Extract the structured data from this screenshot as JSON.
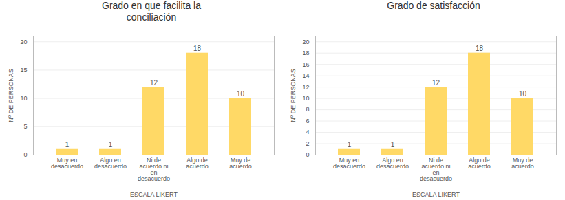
{
  "chart_data": [
    {
      "type": "bar",
      "title": "Grado en que facilita la\nconciliación",
      "categories": [
        "Muy en\ndesacuerdo",
        "Algo en\ndesacuerdo",
        "Ni de\nacuerdo ni\nen\ndesacuerdo",
        "Algo de\nacuerdo",
        "Muy de\nacuerdo"
      ],
      "values": [
        1,
        1,
        12,
        18,
        10
      ],
      "color": "#FFD966",
      "xlabel": "ESCALA LIKERT",
      "ylabel": "Nº DE PERSONAS",
      "ylim": [
        0,
        21
      ],
      "yticks": [
        0,
        5,
        10,
        15,
        20
      ],
      "grid": true,
      "data_labels": true
    },
    {
      "type": "bar",
      "title": "Grado de satisfacción",
      "categories": [
        "Muy en\ndesacuerdo",
        "Algo en\ndesacuerdo",
        "Ni de\nacuerdo ni\nen\ndesacuerdo",
        "Algo de\nacuerdo",
        "Muy de\nacuerdo"
      ],
      "values": [
        1,
        1,
        12,
        18,
        10
      ],
      "color": "#FFD966",
      "xlabel": "ESCALA LIKERT",
      "ylabel": "Nº DE PERSONAS",
      "ylim": [
        0,
        21
      ],
      "yticks": [
        0,
        2,
        4,
        6,
        8,
        10,
        12,
        14,
        16,
        18,
        20
      ],
      "grid": true,
      "data_labels": true
    }
  ]
}
